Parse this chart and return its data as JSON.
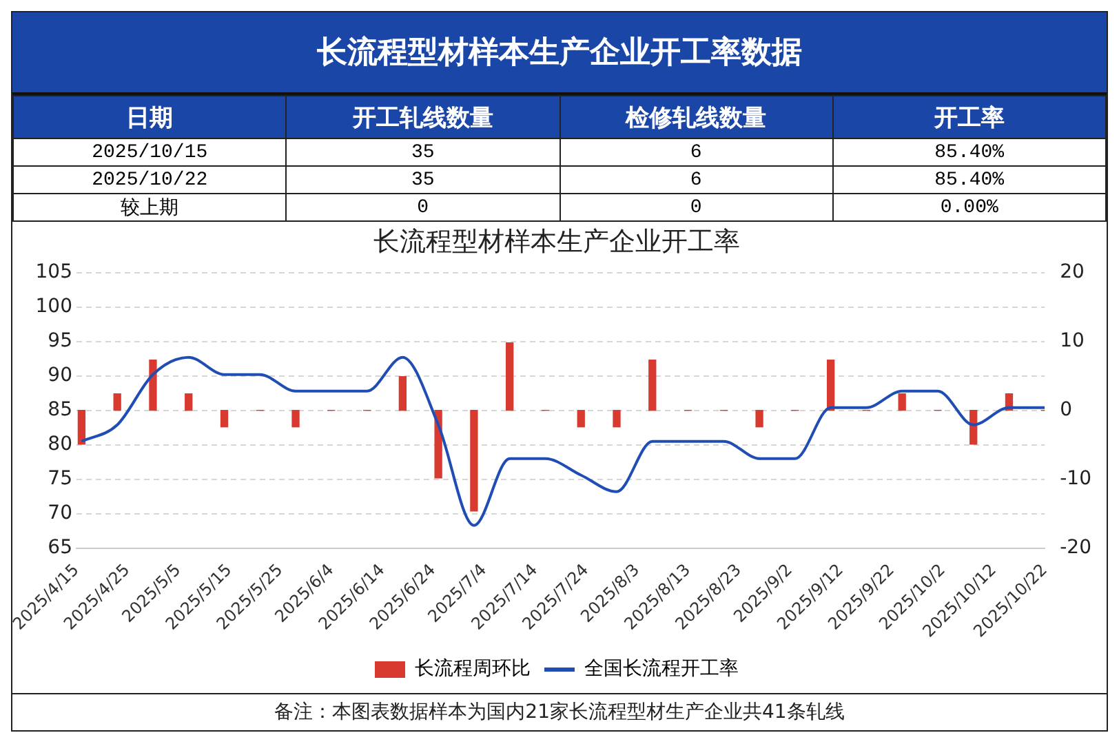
{
  "chart_data": [
    {
      "type": "other",
      "title": "长流程型材样本生产企业开工率数据",
      "categories": [
        "日期",
        "开工轧线数量",
        "检修轧线数量",
        "开工率"
      ],
      "cell_labels": [
        [
          "2025/10/15",
          "35",
          "6",
          "85.40%"
        ],
        [
          "2025/10/22",
          "35",
          "6",
          "85.40%"
        ],
        [
          "较上期",
          "0",
          "0",
          "0.00%"
        ]
      ]
    },
    {
      "type": "bar",
      "title": "长流程型材样本生产企业开工率",
      "x": [
        "2025-04-16",
        "2025-04-23",
        "2025-04-30",
        "2025-05-07",
        "2025-05-14",
        "2025-05-21",
        "2025-05-28",
        "2025-06-04",
        "2025-06-11",
        "2025-06-18",
        "2025-06-25",
        "2025-07-02",
        "2025-07-09",
        "2025-07-16",
        "2025-07-23",
        "2025-07-30",
        "2025-08-06",
        "2025-08-13",
        "2025-08-20",
        "2025-08-27",
        "2025-09-03",
        "2025-09-10",
        "2025-09-17",
        "2025-09-24",
        "2025-10-01",
        "2025-10-08",
        "2025-10-15",
        "2025-10-22"
      ],
      "series": [
        {
          "name": "长流程周环比",
          "type": "bar",
          "axis": "y2",
          "color": "#d93a2f",
          "values": [
            -4.9,
            2.4,
            7.3,
            2.4,
            -2.4,
            0,
            -2.4,
            0,
            0,
            4.9,
            -9.8,
            -14.6,
            9.8,
            0,
            -2.4,
            -2.4,
            7.3,
            0,
            0,
            -2.4,
            0,
            7.3,
            0,
            2.4,
            0,
            -4.9,
            2.4,
            0
          ]
        },
        {
          "name": "全国长流程开工率",
          "type": "line",
          "axis": "y",
          "color": "#1f4db3",
          "values": [
            80.5,
            82.9,
            90.2,
            92.7,
            90.2,
            90.2,
            87.8,
            87.8,
            87.8,
            92.7,
            82.9,
            68.3,
            78.0,
            78.0,
            75.6,
            73.2,
            80.5,
            80.5,
            80.5,
            78.0,
            78.0,
            85.4,
            85.4,
            87.8,
            87.8,
            82.9,
            85.4,
            85.4
          ]
        }
      ],
      "xlim": [
        "2025-04-15",
        "2025-10-22"
      ],
      "xticks": [
        {
          "value": "2025-04-15",
          "label": "2025/4/15"
        },
        {
          "value": "2025-04-25",
          "label": "2025/4/25"
        },
        {
          "value": "2025-05-05",
          "label": "2025/5/5"
        },
        {
          "value": "2025-05-15",
          "label": "2025/5/15"
        },
        {
          "value": "2025-05-25",
          "label": "2025/5/25"
        },
        {
          "value": "2025-06-04",
          "label": "2025/6/4"
        },
        {
          "value": "2025-06-14",
          "label": "2025/6/14"
        },
        {
          "value": "2025-06-24",
          "label": "2025/6/24"
        },
        {
          "value": "2025-07-04",
          "label": "2025/7/4"
        },
        {
          "value": "2025-07-14",
          "label": "2025/7/14"
        },
        {
          "value": "2025-07-24",
          "label": "2025/7/24"
        },
        {
          "value": "2025-08-03",
          "label": "2025/8/3"
        },
        {
          "value": "2025-08-13",
          "label": "2025/8/13"
        },
        {
          "value": "2025-08-23",
          "label": "2025/8/23"
        },
        {
          "value": "2025-09-02",
          "label": "2025/9/2"
        },
        {
          "value": "2025-09-12",
          "label": "2025/9/12"
        },
        {
          "value": "2025-09-22",
          "label": "2025/9/22"
        },
        {
          "value": "2025-10-02",
          "label": "2025/10/2"
        },
        {
          "value": "2025-10-12",
          "label": "2025/10/12"
        },
        {
          "value": "2025-10-22",
          "label": "2025/10/22"
        }
      ],
      "ylim": [
        65,
        105
      ],
      "yticks": [
        65,
        70,
        75,
        80,
        85,
        90,
        95,
        100,
        105
      ],
      "y2lim": [
        -20,
        20
      ],
      "y2ticks": [
        -20,
        -10,
        0,
        10,
        20
      ],
      "grid": "y",
      "legend": "bottom",
      "annotations": [
        "备注：本图表数据样本为国内21家长流程型材生产企业共41条轧线"
      ]
    }
  ]
}
